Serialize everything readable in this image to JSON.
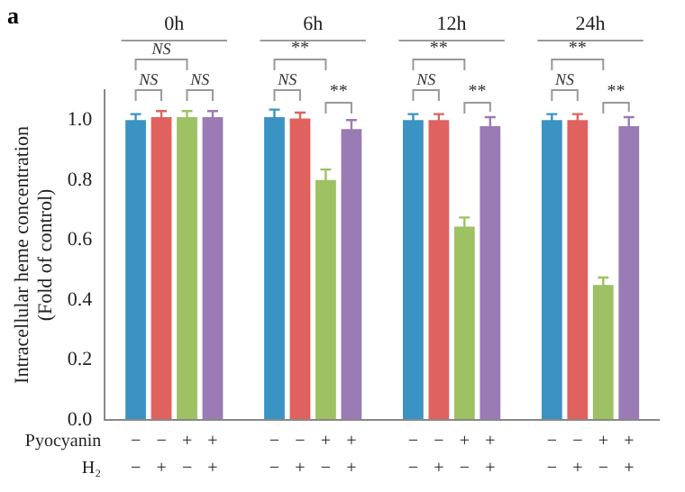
{
  "chart_data": {
    "type": "bar",
    "ylabel": "Intracellular heme concentration\n(Fold of control)",
    "categories": [
      "0h",
      "6h",
      "12h",
      "24h"
    ],
    "series": [
      {
        "color": "#3a93c3",
        "values": [
          1.0,
          1.01,
          1.0,
          1.0
        ],
        "errors": [
          0.02,
          0.025,
          0.02,
          0.02
        ]
      },
      {
        "color": "#e0625f",
        "values": [
          1.01,
          1.005,
          1.0,
          1.0
        ],
        "errors": [
          0.02,
          0.02,
          0.02,
          0.02
        ]
      },
      {
        "color": "#9dc163",
        "values": [
          1.01,
          0.8,
          0.645,
          0.45
        ],
        "errors": [
          0.02,
          0.035,
          0.03,
          0.025
        ]
      },
      {
        "color": "#9a7bb3",
        "values": [
          1.01,
          0.97,
          0.98,
          0.98
        ],
        "errors": [
          0.02,
          0.03,
          0.03,
          0.03
        ]
      }
    ],
    "ylim": [
      0,
      1.1
    ],
    "yticks": [
      {
        "value": 0,
        "label": "0.0"
      },
      0.2,
      0.4,
      0.6,
      0.8,
      {
        "value": 1,
        "label": "1.0"
      }
    ],
    "grid": false,
    "legend": false,
    "annotations": [
      "a",
      "NS",
      "NS",
      "NS",
      "**",
      "NS",
      "**",
      "**",
      "NS",
      "**",
      "**",
      "NS",
      "**",
      "Pyocyanin",
      "H₂",
      "− − + +",
      "− + − +",
      "− − + +",
      "− + − +",
      "− − + +",
      "− + − +",
      "− − + +",
      "− + − +"
    ]
  }
}
